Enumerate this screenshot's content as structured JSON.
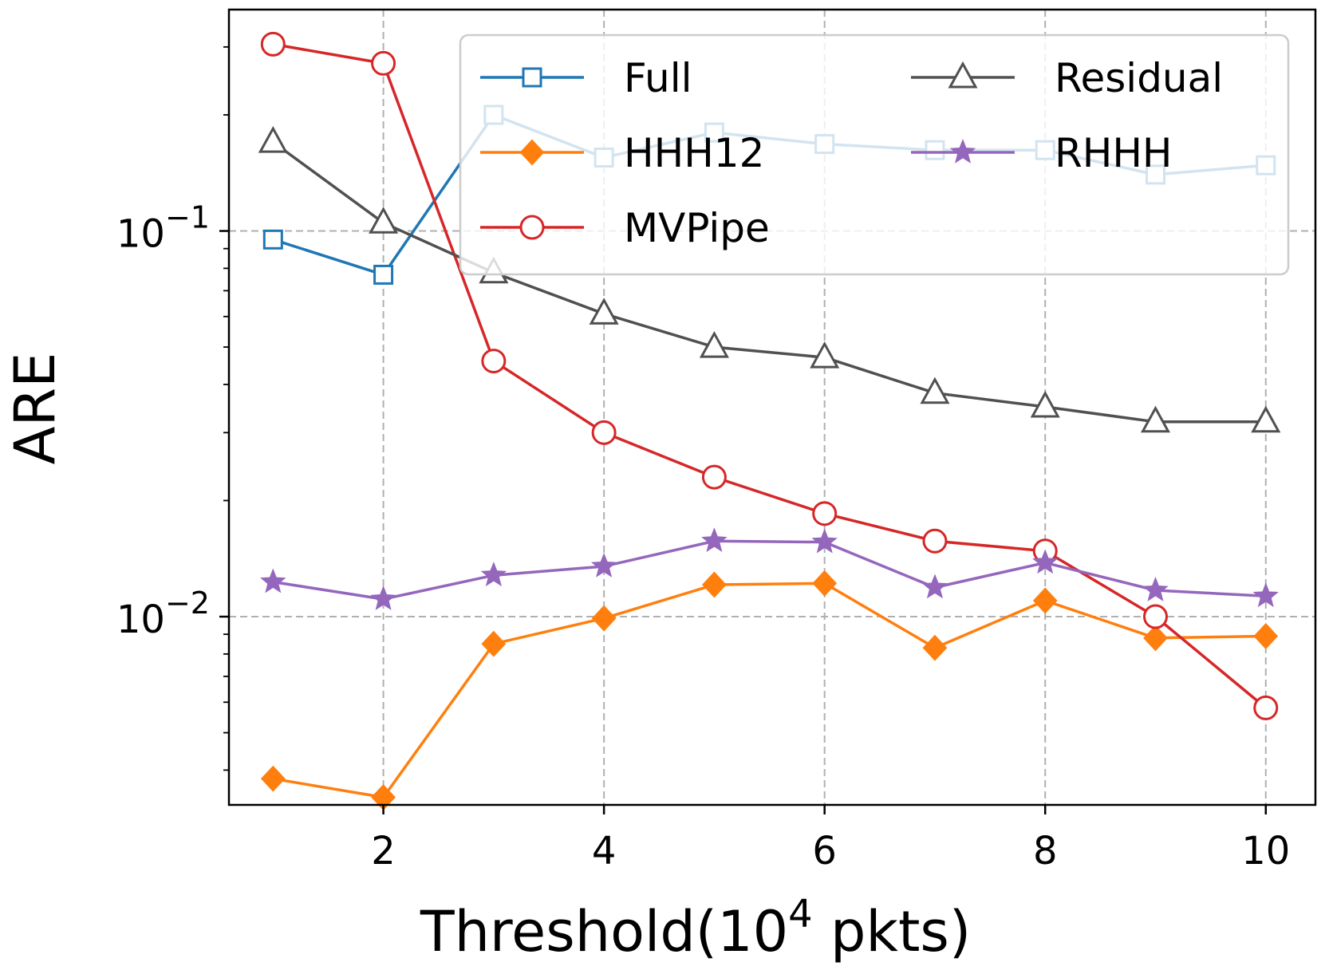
{
  "chart_data": {
    "type": "line",
    "xlabel_main": "Threshold(10",
    "xlabel_sup": "4",
    "xlabel_tail": " pkts)",
    "ylabel": "ARE",
    "yscale": "log",
    "xlim": [
      0.6,
      10.45
    ],
    "ylim": [
      0.00325,
      0.375
    ],
    "grid": true,
    "legend_position": "top-right",
    "x_ticks": [
      {
        "value": 2,
        "label": "2"
      },
      {
        "value": 4,
        "label": "4"
      },
      {
        "value": 6,
        "label": "6"
      },
      {
        "value": 8,
        "label": "8"
      },
      {
        "value": 10,
        "label": "10"
      }
    ],
    "y_ticks": [
      {
        "value": 0.1,
        "base": "10",
        "exp": "−1"
      },
      {
        "value": 0.01,
        "base": "10",
        "exp": "−2"
      }
    ],
    "x": [
      1,
      2,
      3,
      4,
      5,
      6,
      7,
      8,
      9,
      10
    ],
    "series": [
      {
        "name": "Full",
        "color": "#1f77b4",
        "marker": "square",
        "values": [
          0.095,
          0.077,
          0.2,
          0.155,
          0.18,
          0.168,
          0.162,
          0.162,
          0.14,
          0.148
        ]
      },
      {
        "name": "HHH12",
        "color": "#ff7f0e",
        "marker": "diamond",
        "values": [
          0.0038,
          0.0034,
          0.0085,
          0.0099,
          0.0121,
          0.0122,
          0.0083,
          0.011,
          0.0088,
          0.0089
        ]
      },
      {
        "name": "MVPipe",
        "color": "#d62728",
        "marker": "circle",
        "values": [
          0.305,
          0.272,
          0.046,
          0.03,
          0.023,
          0.0185,
          0.0157,
          0.0148,
          0.01,
          0.0058
        ]
      },
      {
        "name": "Residual",
        "color": "#505050",
        "marker": "triangle",
        "values": [
          0.17,
          0.105,
          0.078,
          0.061,
          0.05,
          0.047,
          0.038,
          0.035,
          0.032,
          0.032
        ]
      },
      {
        "name": "RHHH",
        "color": "#9467bd",
        "marker": "star",
        "values": [
          0.0123,
          0.0111,
          0.0128,
          0.0135,
          0.0157,
          0.0156,
          0.0119,
          0.0138,
          0.0117,
          0.0113
        ]
      }
    ]
  }
}
